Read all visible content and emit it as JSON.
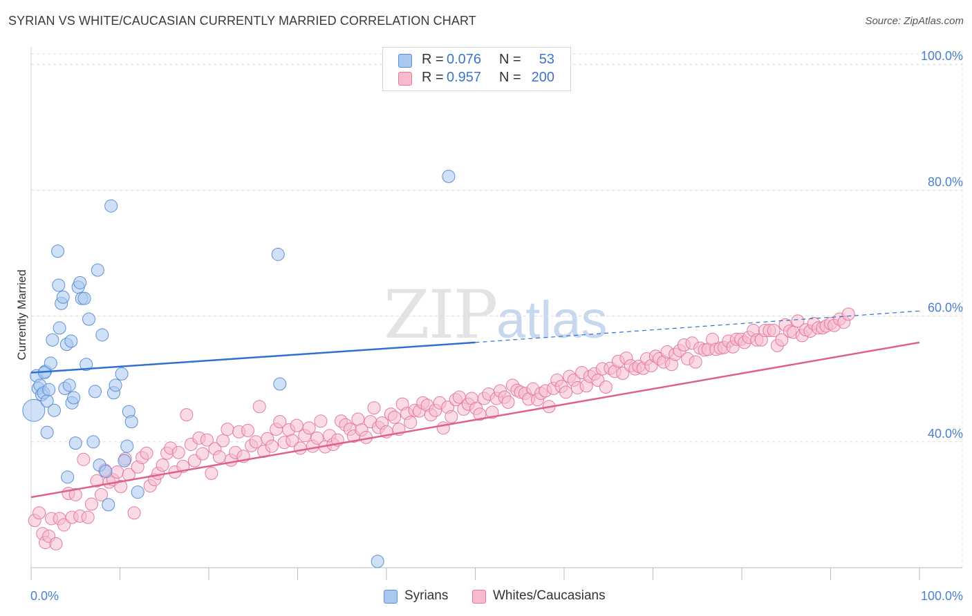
{
  "header": {
    "title": "SYRIAN VS WHITE/CAUCASIAN CURRENTLY MARRIED CORRELATION CHART",
    "source": "Source: ZipAtlas.com"
  },
  "legend_top": {
    "rows": [
      {
        "r_label": "R =",
        "r_value": "0.076",
        "n_label": "N =",
        "n_value": "53",
        "color": "#a9c8f0",
        "border": "#5b8fd6"
      },
      {
        "r_label": "R =",
        "r_value": "0.957",
        "n_label": "N =",
        "n_value": "200",
        "color": "#f6bccd",
        "border": "#e57aa0"
      }
    ]
  },
  "legend_bottom": {
    "items": [
      {
        "label": "Syrians",
        "color": "#a9c8f0",
        "border": "#5b8fd6"
      },
      {
        "label": "Whites/Caucasians",
        "color": "#f6bccd",
        "border": "#e57aa0"
      }
    ]
  },
  "watermark": {
    "zip": "ZIP",
    "atlas": "atlas"
  },
  "chart_data": {
    "type": "scatter",
    "ylabel": "Currently Married",
    "xlim": [
      0,
      100
    ],
    "ylim": [
      20,
      102
    ],
    "x_tick_labels": [
      "0.0%",
      "100.0%"
    ],
    "y_ticks": [
      {
        "value": 40,
        "label": "40.0%"
      },
      {
        "value": 60,
        "label": "60.0%"
      },
      {
        "value": 80,
        "label": "80.0%"
      },
      {
        "value": 100,
        "label": "100.0%"
      }
    ],
    "grid": true,
    "series": [
      {
        "name": "Syrians",
        "color": "#a9c8f0",
        "stroke": "#5b8fd6",
        "trend": {
          "x0": 0,
          "y0": 51.0,
          "x1": 50,
          "y1": 55.8,
          "dash_to_x": 100,
          "dash_to_y": 60.8,
          "color": "#2f6fcf"
        },
        "points": [
          [
            0.3,
            45.0
          ],
          [
            0.6,
            50.5
          ],
          [
            0.8,
            48.5
          ],
          [
            1.0,
            49.0
          ],
          [
            1.2,
            47.5
          ],
          [
            1.4,
            47.8
          ],
          [
            1.6,
            51.2
          ],
          [
            1.8,
            46.5
          ],
          [
            2.0,
            48.3
          ],
          [
            2.2,
            52.5
          ],
          [
            2.4,
            56.2
          ],
          [
            2.6,
            45.0
          ],
          [
            1.8,
            41.5
          ],
          [
            3.0,
            70.3
          ],
          [
            3.1,
            64.9
          ],
          [
            3.2,
            58.1
          ],
          [
            3.4,
            62.0
          ],
          [
            3.6,
            63.0
          ],
          [
            3.8,
            48.5
          ],
          [
            4.0,
            55.5
          ],
          [
            4.3,
            49.0
          ],
          [
            4.5,
            56.0
          ],
          [
            4.6,
            46.2
          ],
          [
            4.8,
            47.0
          ],
          [
            5.0,
            39.8
          ],
          [
            5.3,
            64.6
          ],
          [
            5.5,
            65.3
          ],
          [
            5.7,
            62.8
          ],
          [
            6.0,
            62.8
          ],
          [
            6.2,
            52.3
          ],
          [
            6.5,
            59.5
          ],
          [
            7.0,
            40.0
          ],
          [
            7.2,
            48.0
          ],
          [
            7.5,
            67.3
          ],
          [
            7.7,
            36.3
          ],
          [
            8.0,
            57.0
          ],
          [
            8.4,
            35.3
          ],
          [
            8.7,
            30.0
          ],
          [
            9.0,
            77.5
          ],
          [
            9.3,
            47.8
          ],
          [
            9.5,
            49.0
          ],
          [
            10.2,
            50.8
          ],
          [
            10.5,
            37.0
          ],
          [
            10.8,
            39.3
          ],
          [
            11.0,
            44.8
          ],
          [
            11.3,
            43.2
          ],
          [
            4.1,
            34.4
          ],
          [
            12.0,
            32.0
          ],
          [
            27.8,
            69.8
          ],
          [
            28.0,
            49.2
          ],
          [
            39.0,
            21.0
          ],
          [
            47.0,
            82.2
          ],
          [
            1.5,
            51.0
          ]
        ],
        "sizes": {
          "0": 30
        }
      },
      {
        "name": "Whites/Caucasians",
        "color": "#f6bccd",
        "stroke": "#e57aa0",
        "trend": {
          "x0": 0,
          "y0": 31.2,
          "x1": 100,
          "y1": 55.8,
          "color": "#e0608c"
        },
        "points": [
          [
            0.4,
            27.5
          ],
          [
            0.9,
            28.7
          ],
          [
            1.3,
            25.4
          ],
          [
            1.6,
            24.0
          ],
          [
            2.0,
            25.0
          ],
          [
            2.3,
            27.8
          ],
          [
            2.8,
            23.8
          ],
          [
            3.2,
            27.8
          ],
          [
            3.7,
            26.8
          ],
          [
            4.2,
            31.8
          ],
          [
            4.6,
            28.0
          ],
          [
            5.0,
            31.6
          ],
          [
            5.5,
            28.2
          ],
          [
            5.9,
            37.2
          ],
          [
            6.4,
            28.0
          ],
          [
            6.8,
            30.1
          ],
          [
            7.4,
            33.8
          ],
          [
            7.9,
            31.6
          ],
          [
            8.3,
            35.5
          ],
          [
            8.8,
            33.6
          ],
          [
            9.2,
            34.0
          ],
          [
            9.7,
            35.2
          ],
          [
            10.1,
            32.9
          ],
          [
            10.6,
            37.3
          ],
          [
            11.0,
            34.8
          ],
          [
            11.6,
            28.7
          ],
          [
            12.0,
            36.0
          ],
          [
            12.5,
            37.5
          ],
          [
            13.0,
            38.2
          ],
          [
            13.4,
            33.0
          ],
          [
            13.9,
            34.0
          ],
          [
            14.3,
            35.0
          ],
          [
            14.8,
            36.3
          ],
          [
            15.3,
            38.2
          ],
          [
            15.7,
            39.0
          ],
          [
            16.2,
            35.2
          ],
          [
            16.6,
            38.3
          ],
          [
            17.1,
            36.1
          ],
          [
            17.5,
            44.3
          ],
          [
            18.0,
            39.6
          ],
          [
            18.4,
            37.0
          ],
          [
            18.9,
            40.6
          ],
          [
            19.3,
            38.1
          ],
          [
            19.8,
            40.3
          ],
          [
            20.3,
            35.0
          ],
          [
            20.7,
            38.9
          ],
          [
            21.2,
            37.6
          ],
          [
            21.6,
            40.2
          ],
          [
            22.1,
            42.0
          ],
          [
            22.5,
            37.1
          ],
          [
            23.0,
            38.3
          ],
          [
            23.4,
            41.6
          ],
          [
            23.9,
            37.7
          ],
          [
            24.4,
            41.8
          ],
          [
            24.8,
            39.4
          ],
          [
            25.3,
            40.0
          ],
          [
            25.7,
            45.6
          ],
          [
            26.2,
            38.5
          ],
          [
            26.6,
            40.5
          ],
          [
            27.1,
            39.3
          ],
          [
            27.6,
            42.0
          ],
          [
            28.0,
            43.2
          ],
          [
            28.5,
            39.9
          ],
          [
            29.0,
            41.9
          ],
          [
            29.4,
            40.2
          ],
          [
            29.9,
            42.6
          ],
          [
            30.3,
            39.0
          ],
          [
            30.8,
            41.0
          ],
          [
            31.3,
            42.2
          ],
          [
            31.7,
            39.3
          ],
          [
            32.2,
            40.6
          ],
          [
            32.6,
            43.3
          ],
          [
            33.1,
            39.2
          ],
          [
            33.6,
            41.0
          ],
          [
            34.0,
            39.6
          ],
          [
            34.5,
            40.3
          ],
          [
            34.9,
            43.3
          ],
          [
            35.4,
            42.7
          ],
          [
            35.9,
            42.0
          ],
          [
            36.3,
            40.9
          ],
          [
            36.8,
            43.6
          ],
          [
            37.2,
            41.9
          ],
          [
            37.7,
            40.7
          ],
          [
            38.2,
            43.2
          ],
          [
            38.6,
            45.4
          ],
          [
            39.1,
            42.3
          ],
          [
            39.5,
            43.0
          ],
          [
            40.0,
            41.6
          ],
          [
            40.5,
            44.4
          ],
          [
            40.9,
            43.9
          ],
          [
            41.4,
            42.0
          ],
          [
            41.8,
            46.0
          ],
          [
            42.3,
            44.5
          ],
          [
            42.7,
            43.1
          ],
          [
            43.2,
            45.0
          ],
          [
            43.7,
            44.9
          ],
          [
            44.1,
            46.2
          ],
          [
            44.6,
            45.8
          ],
          [
            45.0,
            44.3
          ],
          [
            45.5,
            45.0
          ],
          [
            46.0,
            46.2
          ],
          [
            46.4,
            42.2
          ],
          [
            46.9,
            45.5
          ],
          [
            47.3,
            44.0
          ],
          [
            47.8,
            46.7
          ],
          [
            48.2,
            47.1
          ],
          [
            48.7,
            45.2
          ],
          [
            49.2,
            46.0
          ],
          [
            49.6,
            46.9
          ],
          [
            50.1,
            45.3
          ],
          [
            50.5,
            44.4
          ],
          [
            51.0,
            46.9
          ],
          [
            51.5,
            47.6
          ],
          [
            51.9,
            44.7
          ],
          [
            52.4,
            46.9
          ],
          [
            52.8,
            48.1
          ],
          [
            53.3,
            47.1
          ],
          [
            53.7,
            46.3
          ],
          [
            54.2,
            49.0
          ],
          [
            54.7,
            48.2
          ],
          [
            55.1,
            47.9
          ],
          [
            55.6,
            47.7
          ],
          [
            56.0,
            46.8
          ],
          [
            56.5,
            48.4
          ],
          [
            57.0,
            46.7
          ],
          [
            57.4,
            47.7
          ],
          [
            57.9,
            48.1
          ],
          [
            58.3,
            45.6
          ],
          [
            58.8,
            48.5
          ],
          [
            59.2,
            49.8
          ],
          [
            59.7,
            48.8
          ],
          [
            60.2,
            47.9
          ],
          [
            60.6,
            50.4
          ],
          [
            61.1,
            49.8
          ],
          [
            61.5,
            48.6
          ],
          [
            62.0,
            51.0
          ],
          [
            62.5,
            48.9
          ],
          [
            62.9,
            50.4
          ],
          [
            63.4,
            50.8
          ],
          [
            63.8,
            49.8
          ],
          [
            64.3,
            51.6
          ],
          [
            64.7,
            48.7
          ],
          [
            65.2,
            51.7
          ],
          [
            65.7,
            51.2
          ],
          [
            66.1,
            52.8
          ],
          [
            66.6,
            50.9
          ],
          [
            67.0,
            53.3
          ],
          [
            67.5,
            52.1
          ],
          [
            68.0,
            51.6
          ],
          [
            68.4,
            52.0
          ],
          [
            68.9,
            51.7
          ],
          [
            69.3,
            53.2
          ],
          [
            69.8,
            52.1
          ],
          [
            70.3,
            53.6
          ],
          [
            70.7,
            53.2
          ],
          [
            71.2,
            52.7
          ],
          [
            71.6,
            54.3
          ],
          [
            72.1,
            52.3
          ],
          [
            72.5,
            53.9
          ],
          [
            73.0,
            54.5
          ],
          [
            73.5,
            55.4
          ],
          [
            73.9,
            53.2
          ],
          [
            74.4,
            55.7
          ],
          [
            74.8,
            52.7
          ],
          [
            75.3,
            54.9
          ],
          [
            75.8,
            54.6
          ],
          [
            76.2,
            54.7
          ],
          [
            76.7,
            56.3
          ],
          [
            77.1,
            54.7
          ],
          [
            77.6,
            54.9
          ],
          [
            78.0,
            55.0
          ],
          [
            78.5,
            56.0
          ],
          [
            79.0,
            55.1
          ],
          [
            79.4,
            56.3
          ],
          [
            79.9,
            56.3
          ],
          [
            80.3,
            55.8
          ],
          [
            80.8,
            56.6
          ],
          [
            81.3,
            57.7
          ],
          [
            81.7,
            56.2
          ],
          [
            82.2,
            56.2
          ],
          [
            82.6,
            57.7
          ],
          [
            83.1,
            57.7
          ],
          [
            83.6,
            57.7
          ],
          [
            84.0,
            55.3
          ],
          [
            84.5,
            56.2
          ],
          [
            84.9,
            58.6
          ],
          [
            85.4,
            57.6
          ],
          [
            85.8,
            57.4
          ],
          [
            86.3,
            59.2
          ],
          [
            86.8,
            56.9
          ],
          [
            87.2,
            57.8
          ],
          [
            87.7,
            57.6
          ],
          [
            88.1,
            58.8
          ],
          [
            88.6,
            58.1
          ],
          [
            89.1,
            58.1
          ],
          [
            89.5,
            58.4
          ],
          [
            90.0,
            58.8
          ],
          [
            90.4,
            58.5
          ],
          [
            91.0,
            59.5
          ],
          [
            91.5,
            59.0
          ],
          [
            92.0,
            60.3
          ]
        ]
      }
    ]
  }
}
